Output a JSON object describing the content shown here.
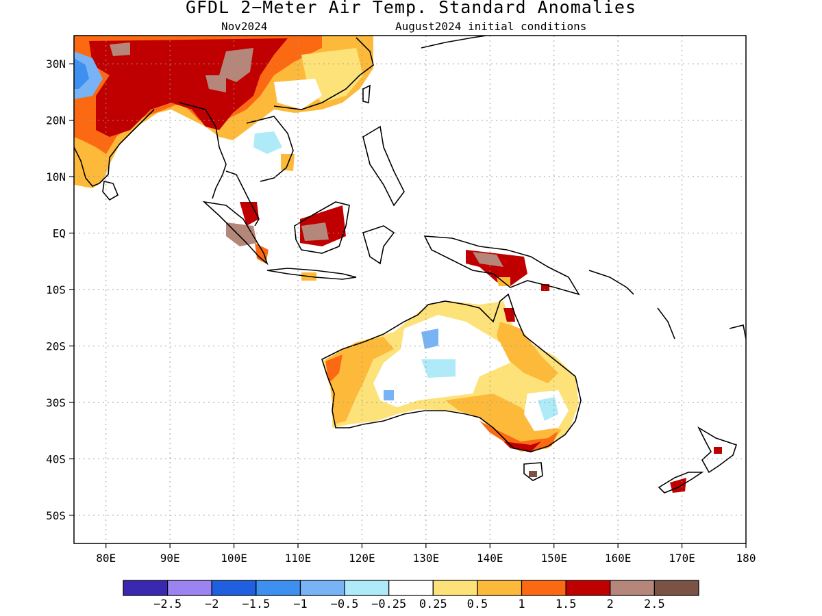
{
  "title": "GFDL 2−Meter Air Temp. Standard Anomalies",
  "subtitle_left": "Nov2024",
  "subtitle_right": "August2024 initial conditions",
  "map": {
    "lon_range": [
      75,
      180
    ],
    "lat_range": [
      -55,
      35
    ],
    "lat_ticks": [
      {
        "lat": 30,
        "label": "30N"
      },
      {
        "lat": 20,
        "label": "20N"
      },
      {
        "lat": 10,
        "label": "10N"
      },
      {
        "lat": 0,
        "label": "EQ"
      },
      {
        "lat": -10,
        "label": "10S"
      },
      {
        "lat": -20,
        "label": "20S"
      },
      {
        "lat": -30,
        "label": "30S"
      },
      {
        "lat": -40,
        "label": "40S"
      },
      {
        "lat": -50,
        "label": "50S"
      }
    ],
    "lon_ticks": [
      {
        "lon": 80,
        "label": "80E"
      },
      {
        "lon": 90,
        "label": "90E"
      },
      {
        "lon": 100,
        "label": "100E"
      },
      {
        "lon": 110,
        "label": "110E"
      },
      {
        "lon": 120,
        "label": "120E"
      },
      {
        "lon": 130,
        "label": "130E"
      },
      {
        "lon": 140,
        "label": "140E"
      },
      {
        "lon": 150,
        "label": "150E"
      },
      {
        "lon": 160,
        "label": "160E"
      },
      {
        "lon": 170,
        "label": "170E"
      },
      {
        "lon": 180,
        "label": "180"
      }
    ],
    "grid": "dotted"
  },
  "colorbar": {
    "colors": [
      "#3a28b0",
      "#9b84f2",
      "#1f5fe0",
      "#3d90f0",
      "#78b4f5",
      "#aeeaf7",
      "#ffffff",
      "#fde27a",
      "#fdba3a",
      "#fb6a12",
      "#c00000",
      "#b5877a",
      "#7a5344"
    ],
    "labels": [
      "−2.5",
      "−2",
      "−1.5",
      "−1",
      "−0.5",
      "−0.25",
      "0.25",
      "0.5",
      "1",
      "1.5",
      "2",
      "2.5"
    ]
  }
}
